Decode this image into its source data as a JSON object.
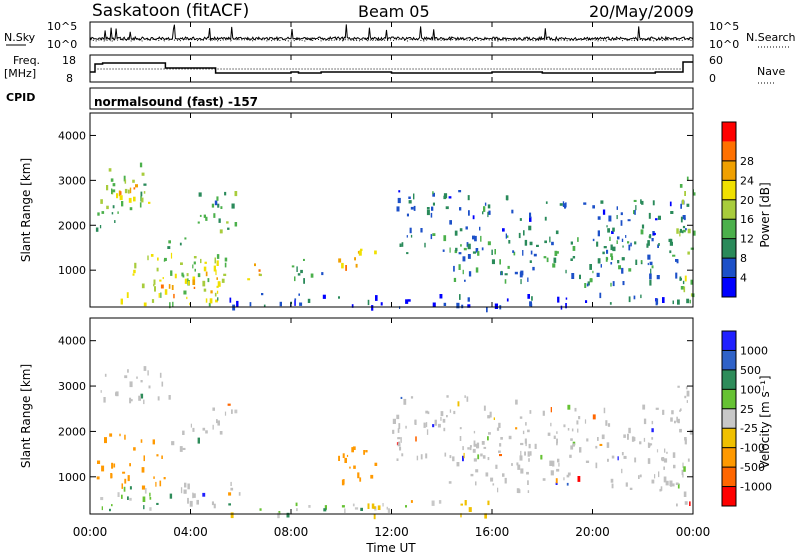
{
  "header": {
    "station": "Saskatoon (fitACF)",
    "beam": "Beam 05",
    "date": "20/May/2009"
  },
  "panels": {
    "nsky_label": "N.Sky",
    "nsearch_label": "N.Search",
    "freq_label_1": "Freq.",
    "freq_label_2": "[MHz]",
    "nave_label": "Nave",
    "cpid_label": "CPID",
    "cpid_value": "normalsound (fast) -157",
    "noise_ticks": [
      "10^5",
      "10^0"
    ],
    "freq_ticks": [
      "18",
      "8"
    ],
    "nave_ticks": [
      "60",
      "0"
    ]
  },
  "colors": {
    "power": [
      "#0000ff",
      "#1c50c8",
      "#2a8a5a",
      "#4bb04b",
      "#a8cc3c",
      "#f0e000",
      "#f0a000",
      "#ff7000",
      "#ff0000"
    ],
    "velocity": [
      "#2020ff",
      "#2f62c8",
      "#2e8c5a",
      "#66c233",
      "#c8c8c8",
      "#f0c000",
      "#ff9900",
      "#ff6600",
      "#ff0000"
    ],
    "ground": "#c0c0c0"
  },
  "chart_data": [
    {
      "type": "heatmap",
      "name": "power",
      "ylabel": "Slant Range [km]",
      "ylim": [
        180,
        4500
      ],
      "yticks": [
        "1000",
        "2000",
        "3000",
        "4000"
      ],
      "colorbar": {
        "label": "Power [dB]",
        "ticks": [
          "4",
          "8",
          "12",
          "16",
          "20",
          "24",
          "28"
        ]
      },
      "regions": [
        {
          "t0": 0.4,
          "t1": 2.4,
          "r0": 2300,
          "r1": 3400,
          "v": 18
        },
        {
          "t0": 0.8,
          "t1": 1.8,
          "r0": 2600,
          "r1": 3000,
          "v": 28
        },
        {
          "t0": 0.2,
          "t1": 1.0,
          "r0": 1800,
          "r1": 2400,
          "v": 14
        },
        {
          "t0": 1.2,
          "t1": 5.4,
          "r0": 250,
          "r1": 1400,
          "v": 20
        },
        {
          "t0": 2.6,
          "t1": 5.2,
          "r0": 250,
          "r1": 1000,
          "v": 28
        },
        {
          "t0": 3.0,
          "t1": 4.0,
          "r0": 1400,
          "r1": 1900,
          "v": 16
        },
        {
          "t0": 4.2,
          "t1": 5.8,
          "r0": 1900,
          "r1": 2800,
          "v": 14
        },
        {
          "t0": 6.2,
          "t1": 6.8,
          "r0": 700,
          "r1": 1200,
          "v": 26
        },
        {
          "t0": 9.8,
          "t1": 11.4,
          "r0": 900,
          "r1": 1500,
          "v": 26
        },
        {
          "t0": 8.0,
          "t1": 9.5,
          "r0": 800,
          "r1": 1300,
          "v": 12
        },
        {
          "t0": 12.0,
          "t1": 17.5,
          "r0": 1400,
          "r1": 2800,
          "v": 10
        },
        {
          "t0": 14.0,
          "t1": 23.5,
          "r0": 700,
          "r1": 1800,
          "v": 12
        },
        {
          "t0": 18.0,
          "t1": 23.8,
          "r0": 1800,
          "r1": 2600,
          "v": 10
        },
        {
          "t0": 5.0,
          "t1": 24.0,
          "r0": 180,
          "r1": 500,
          "v": 8
        },
        {
          "t0": 23.3,
          "t1": 24.0,
          "r0": 300,
          "r1": 3300,
          "v": 18
        }
      ]
    },
    {
      "type": "heatmap",
      "name": "velocity",
      "xlabel": "Time UT",
      "ylabel": "Slant Range [km]",
      "ylim": [
        180,
        4500
      ],
      "xlim": [
        0,
        24
      ],
      "xticks": [
        "00:00",
        "04:00",
        "08:00",
        "12:00",
        "16:00",
        "20:00",
        "00:00"
      ],
      "yticks": [
        "1000",
        "2000",
        "3000",
        "4000"
      ],
      "colorbar": {
        "label": "Velocity [m s⁻¹]",
        "ticks": [
          "1000",
          "500",
          "100",
          "25",
          "-25",
          "-100",
          "-500",
          "-1000"
        ]
      },
      "regions": [
        {
          "t0": 0.4,
          "t1": 3.2,
          "r0": 2700,
          "r1": 3500,
          "v": 0,
          "g": 1
        },
        {
          "t0": 3.0,
          "t1": 4.6,
          "r0": 1600,
          "r1": 2200,
          "v": 0,
          "g": 1
        },
        {
          "t0": 4.8,
          "t1": 5.8,
          "r0": 2000,
          "r1": 2800,
          "v": 0,
          "g": 1
        },
        {
          "t0": 0.2,
          "t1": 3.0,
          "r0": 800,
          "r1": 2000,
          "v": -200
        },
        {
          "t0": 0.4,
          "t1": 2.8,
          "r0": 250,
          "r1": 900,
          "v": 80
        },
        {
          "t0": 3.0,
          "t1": 6.0,
          "r0": 400,
          "r1": 1000,
          "v": 0,
          "g": 1
        },
        {
          "t0": 9.8,
          "t1": 11.4,
          "r0": 900,
          "r1": 1700,
          "v": -300
        },
        {
          "t0": 5.0,
          "t1": 12.0,
          "r0": 180,
          "r1": 450,
          "v": 60
        },
        {
          "t0": 11.0,
          "t1": 16.0,
          "r0": 180,
          "r1": 500,
          "v": -60
        },
        {
          "t0": 12.0,
          "t1": 17.5,
          "r0": 1400,
          "r1": 2800,
          "v": 0,
          "g": 1
        },
        {
          "t0": 14.0,
          "t1": 23.5,
          "r0": 700,
          "r1": 1800,
          "v": 0,
          "g": 1
        },
        {
          "t0": 18.0,
          "t1": 23.8,
          "r0": 1800,
          "r1": 2600,
          "v": 0,
          "g": 1
        },
        {
          "t0": 23.3,
          "t1": 24.0,
          "r0": 300,
          "r1": 3300,
          "v": 0,
          "g": 1
        }
      ]
    }
  ]
}
